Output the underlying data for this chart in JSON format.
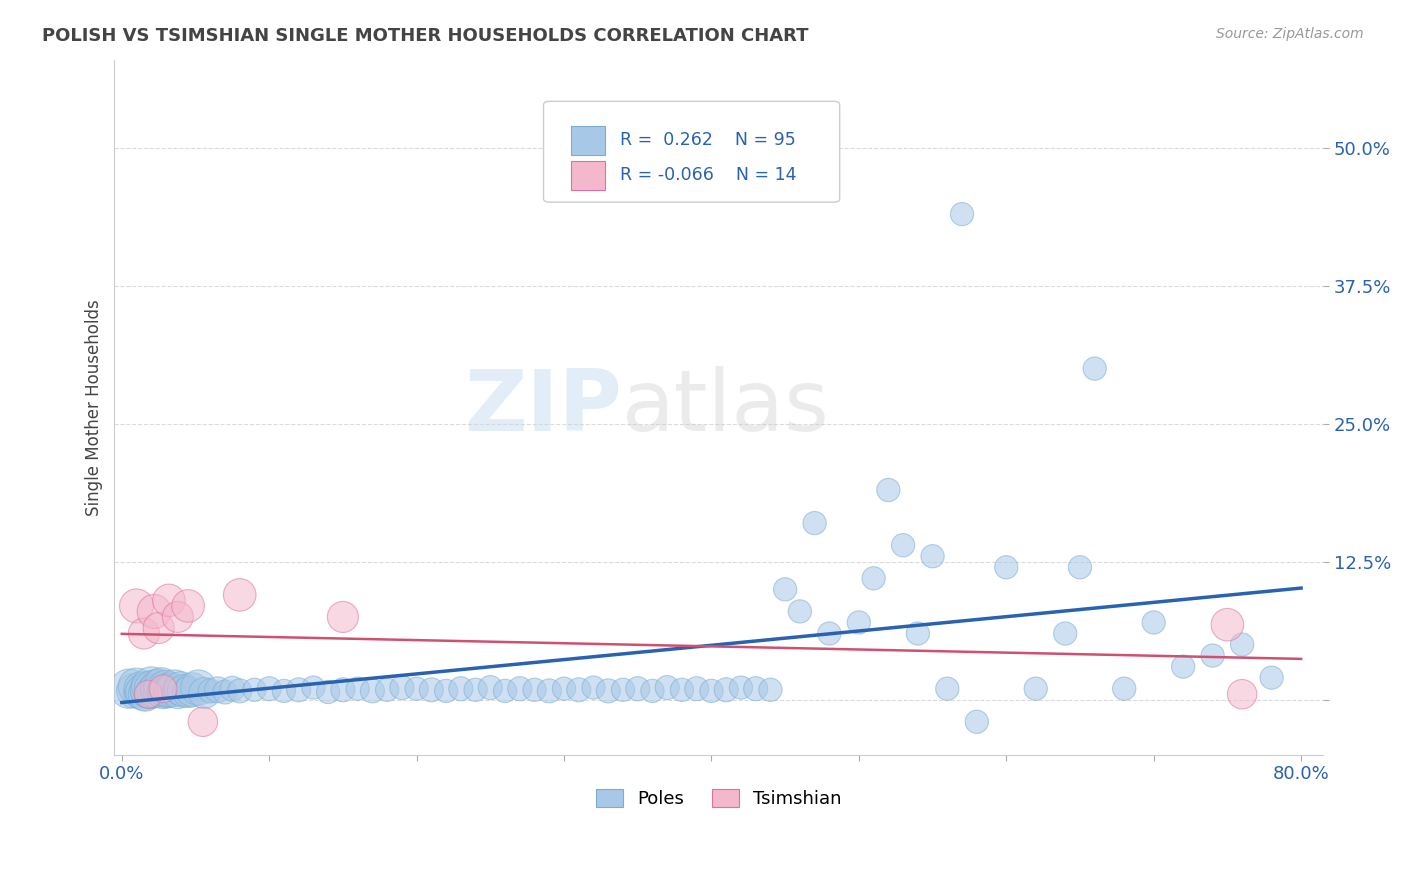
{
  "title": "POLISH VS TSIMSHIAN SINGLE MOTHER HOUSEHOLDS CORRELATION CHART",
  "source": "Source: ZipAtlas.com",
  "ylabel": "Single Mother Households",
  "xlim": [
    0.0,
    0.8
  ],
  "ylim": [
    -0.05,
    0.58
  ],
  "yticks": [
    0.0,
    0.125,
    0.25,
    0.375,
    0.5
  ],
  "ytick_labels": [
    "",
    "12.5%",
    "25.0%",
    "37.5%",
    "50.0%"
  ],
  "xticks": [
    0.0,
    0.1,
    0.2,
    0.3,
    0.4,
    0.5,
    0.6,
    0.7,
    0.8
  ],
  "xtick_labels": [
    "0.0%",
    "",
    "",
    "",
    "",
    "",
    "",
    "",
    "80.0%"
  ],
  "poles_R": 0.262,
  "poles_N": 95,
  "tsimshian_R": -0.066,
  "tsimshian_N": 14,
  "poles_color": "#a8c8e8",
  "poles_edge_color": "#7aaed0",
  "poles_line_color": "#2962b0",
  "tsimshian_color": "#f4b8cc",
  "tsimshian_edge_color": "#e070a0",
  "tsimshian_line_color": "#d05070",
  "watermark": "ZIPatlas",
  "background_color": "#ffffff",
  "grid_color": "#cccccc",
  "title_color": "#444444",
  "axis_label_color": "#444444",
  "tick_label_color": "#2962b0",
  "poles_x": [
    0.005,
    0.008,
    0.01,
    0.012,
    0.013,
    0.015,
    0.016,
    0.017,
    0.018,
    0.019,
    0.02,
    0.021,
    0.022,
    0.023,
    0.025,
    0.026,
    0.027,
    0.028,
    0.03,
    0.031,
    0.032,
    0.034,
    0.036,
    0.038,
    0.04,
    0.042,
    0.045,
    0.048,
    0.052,
    0.056,
    0.06,
    0.065,
    0.07,
    0.075,
    0.08,
    0.09,
    0.1,
    0.11,
    0.12,
    0.13,
    0.14,
    0.15,
    0.16,
    0.17,
    0.18,
    0.19,
    0.2,
    0.21,
    0.22,
    0.23,
    0.24,
    0.25,
    0.26,
    0.27,
    0.28,
    0.29,
    0.3,
    0.31,
    0.32,
    0.33,
    0.34,
    0.35,
    0.36,
    0.37,
    0.38,
    0.39,
    0.4,
    0.41,
    0.42,
    0.43,
    0.44,
    0.45,
    0.46,
    0.47,
    0.48,
    0.5,
    0.51,
    0.52,
    0.53,
    0.54,
    0.55,
    0.56,
    0.58,
    0.6,
    0.62,
    0.64,
    0.65,
    0.66,
    0.68,
    0.7,
    0.72,
    0.74,
    0.76,
    0.78,
    0.57
  ],
  "poles_y": [
    0.01,
    0.008,
    0.012,
    0.006,
    0.01,
    0.007,
    0.005,
    0.008,
    0.009,
    0.006,
    0.012,
    0.01,
    0.008,
    0.007,
    0.011,
    0.009,
    0.013,
    0.006,
    0.01,
    0.008,
    0.007,
    0.009,
    0.011,
    0.006,
    0.01,
    0.008,
    0.007,
    0.009,
    0.011,
    0.006,
    0.008,
    0.009,
    0.007,
    0.01,
    0.008,
    0.009,
    0.01,
    0.008,
    0.009,
    0.011,
    0.007,
    0.009,
    0.01,
    0.008,
    0.009,
    0.011,
    0.01,
    0.009,
    0.008,
    0.01,
    0.009,
    0.011,
    0.008,
    0.01,
    0.009,
    0.008,
    0.01,
    0.009,
    0.011,
    0.008,
    0.009,
    0.01,
    0.008,
    0.011,
    0.009,
    0.01,
    0.008,
    0.009,
    0.011,
    0.01,
    0.009,
    0.1,
    0.08,
    0.16,
    0.06,
    0.07,
    0.11,
    0.19,
    0.14,
    0.06,
    0.13,
    0.01,
    -0.02,
    0.12,
    0.01,
    0.06,
    0.12,
    0.3,
    0.01,
    0.07,
    0.03,
    0.04,
    0.05,
    0.02,
    0.44
  ],
  "poles_sizes": [
    800,
    600,
    700,
    500,
    600,
    700,
    600,
    550,
    700,
    500,
    800,
    700,
    600,
    500,
    700,
    600,
    650,
    500,
    700,
    600,
    500,
    600,
    650,
    500,
    600,
    550,
    500,
    600,
    650,
    500,
    300,
    350,
    300,
    320,
    300,
    280,
    300,
    280,
    300,
    280,
    280,
    300,
    280,
    300,
    280,
    300,
    280,
    300,
    280,
    300,
    280,
    300,
    280,
    300,
    280,
    300,
    280,
    300,
    280,
    300,
    280,
    300,
    280,
    300,
    280,
    300,
    280,
    300,
    280,
    300,
    280,
    280,
    280,
    280,
    280,
    280,
    280,
    280,
    280,
    280,
    280,
    280,
    280,
    280,
    280,
    280,
    280,
    280,
    280,
    280,
    280,
    280,
    280,
    280,
    280
  ],
  "tsimshian_x": [
    0.01,
    0.015,
    0.018,
    0.022,
    0.025,
    0.028,
    0.032,
    0.038,
    0.045,
    0.055,
    0.08,
    0.15,
    0.75,
    0.76
  ],
  "tsimshian_y": [
    0.085,
    0.06,
    0.005,
    0.08,
    0.065,
    0.01,
    0.09,
    0.075,
    0.085,
    -0.02,
    0.095,
    0.075,
    0.068,
    0.005
  ],
  "tsimshian_sizes": [
    600,
    500,
    400,
    600,
    500,
    400,
    550,
    500,
    550,
    450,
    550,
    500,
    550,
    450
  ]
}
